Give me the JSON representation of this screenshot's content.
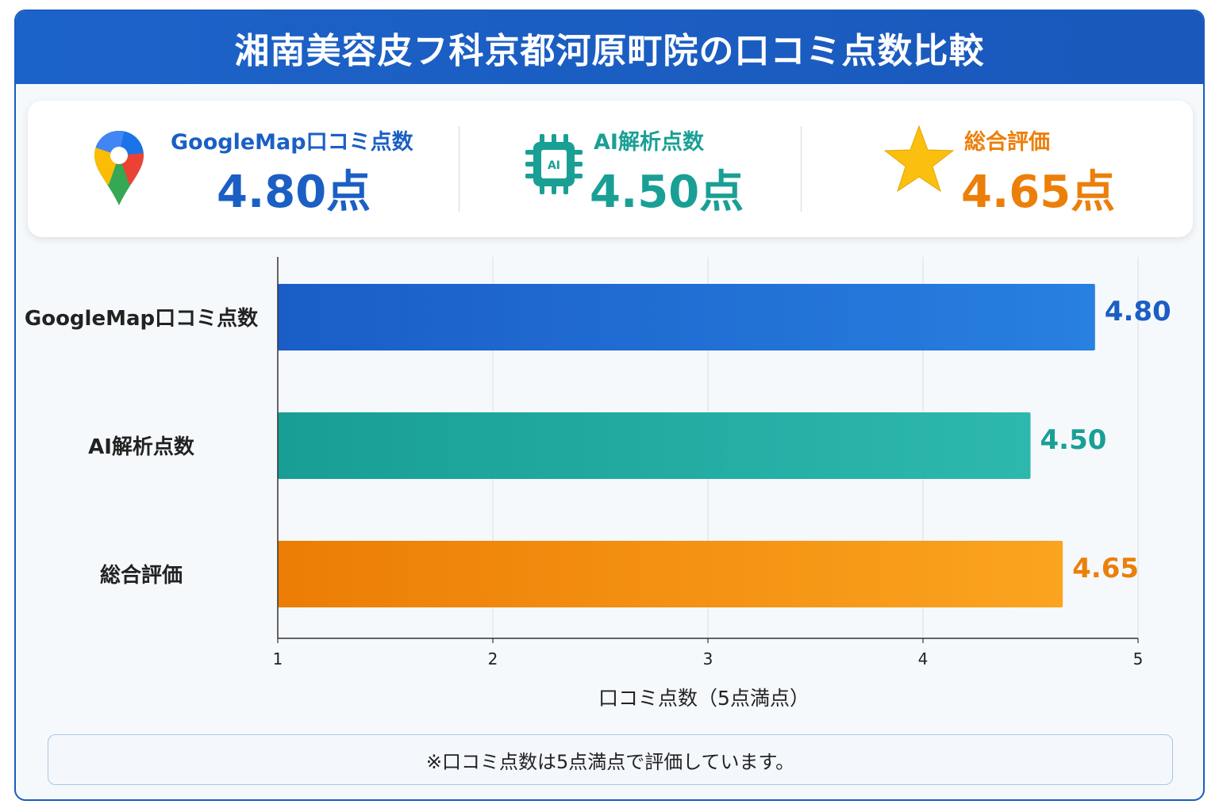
{
  "title": "湘南美容皮フ科京都河原町院の口コミ点数比較",
  "summary": [
    {
      "label": "GoogleMap口コミ点数",
      "value": "4.80点",
      "icon": "google-maps-pin-icon",
      "color": "#1b5fc4"
    },
    {
      "label": "AI解析点数",
      "value": "4.50点",
      "icon": "ai-chip-icon",
      "icon_text": "AI",
      "color": "#1a9f95"
    },
    {
      "label": "総合評価",
      "value": "4.65点",
      "icon": "star-icon",
      "color": "#ec7f0a"
    }
  ],
  "chart_data": {
    "type": "bar",
    "orientation": "horizontal",
    "categories": [
      "GoogleMap口コミ点数",
      "AI解析点数",
      "総合評価"
    ],
    "values": [
      4.8,
      4.5,
      4.65
    ],
    "value_labels": [
      "4.80",
      "4.50",
      "4.65"
    ],
    "colors": [
      "#1b5fc4",
      "#1a9f95",
      "#ec7f0a"
    ],
    "xlabel": "口コミ点数（5点満点）",
    "xlim": [
      1,
      5
    ],
    "xticks": [
      1,
      2,
      3,
      4,
      5
    ],
    "grid": true
  },
  "note": "※口コミ点数は5点満点で評価しています。"
}
